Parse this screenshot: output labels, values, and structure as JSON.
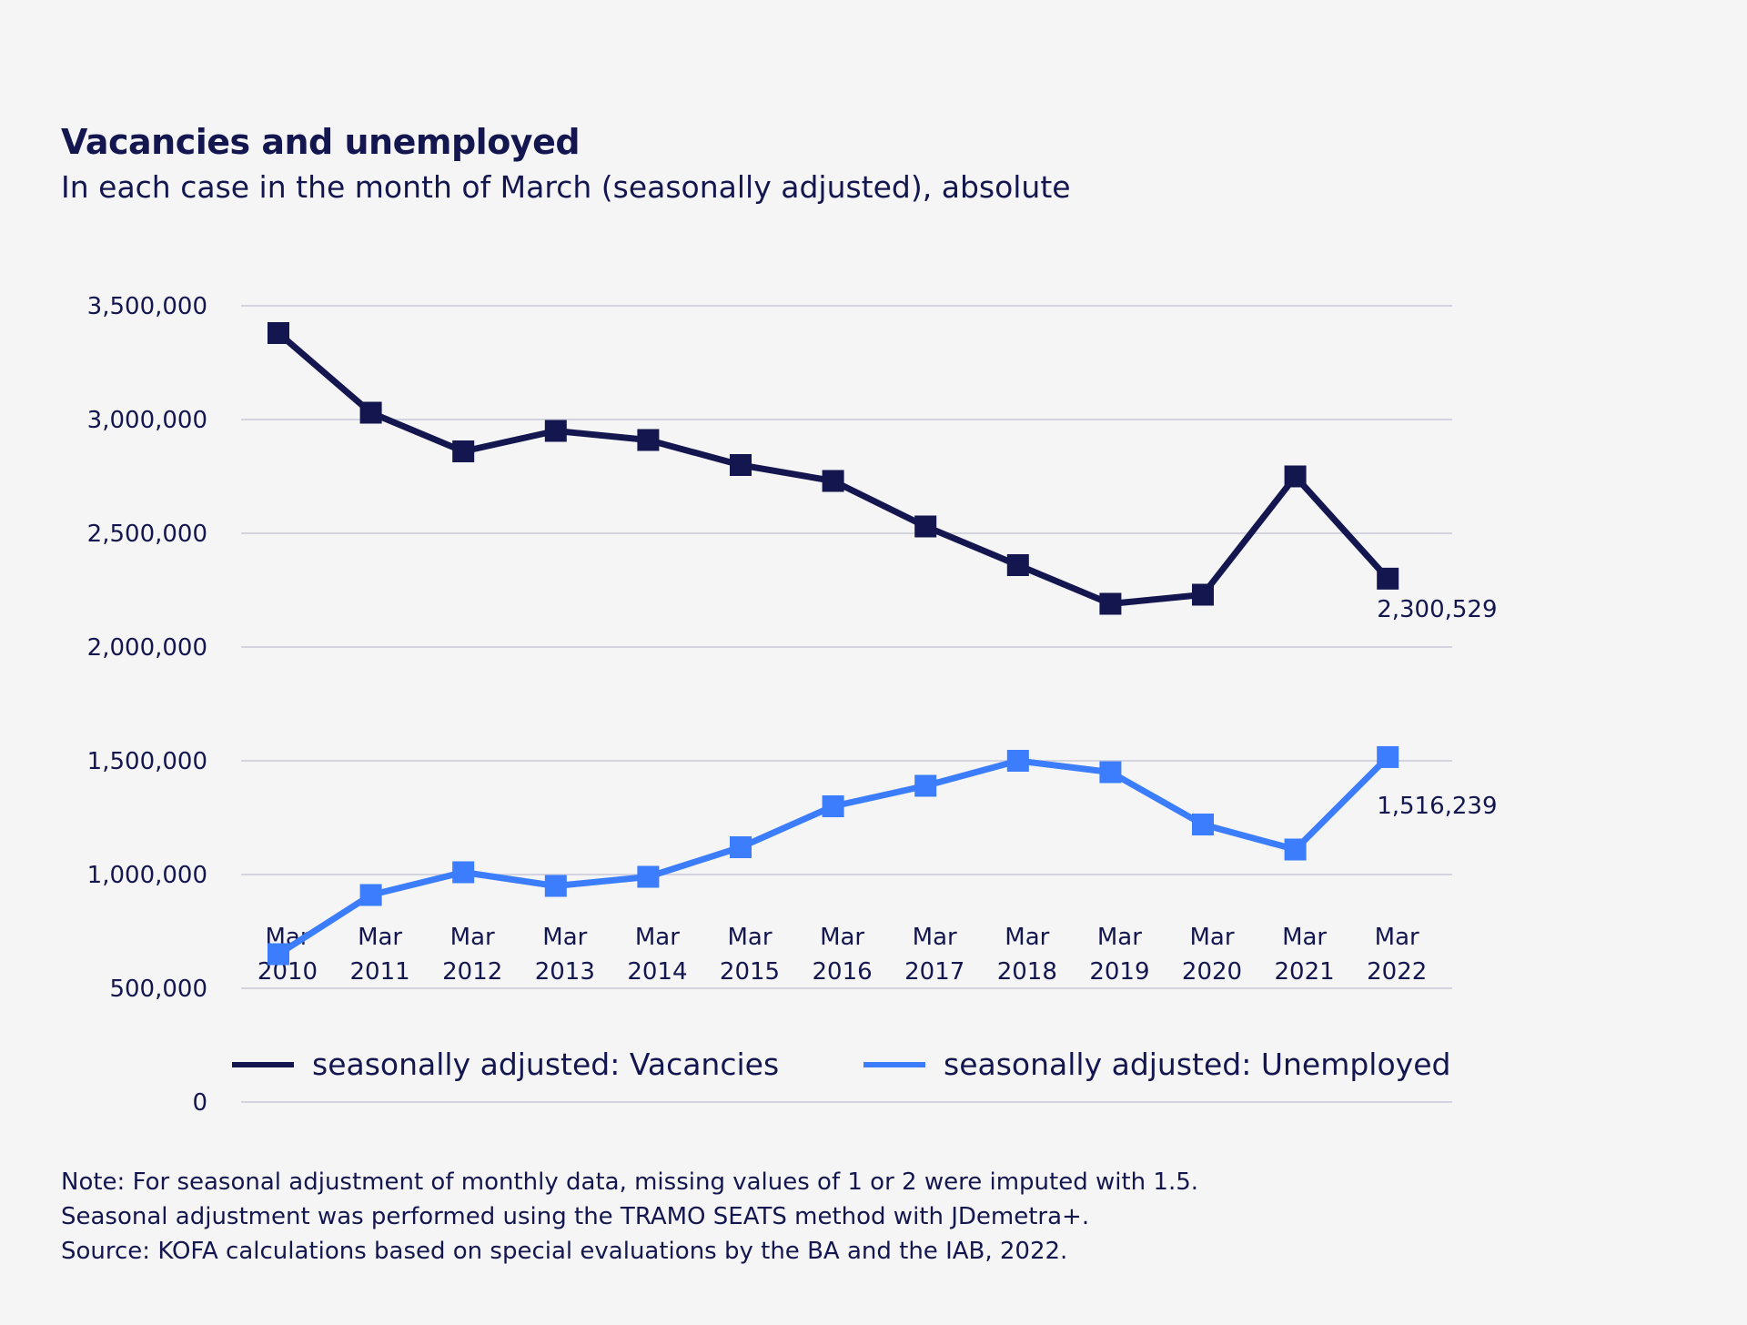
{
  "colors": {
    "background": "#f5f5f5",
    "vacancies": "#14174f",
    "unemployed": "#3b7dfc",
    "grid": "#d4d4e0",
    "text": "#14174f"
  },
  "chart_data": {
    "type": "line",
    "title": "Vacancies and unemployed",
    "subtitle": "In each case in the month of March (seasonally adjusted), absolute",
    "categories": [
      {
        "line1": "Mar",
        "line2": "2010"
      },
      {
        "line1": "Mar",
        "line2": "2011"
      },
      {
        "line1": "Mar",
        "line2": "2012"
      },
      {
        "line1": "Mar",
        "line2": "2013"
      },
      {
        "line1": "Mar",
        "line2": "2014"
      },
      {
        "line1": "Mar",
        "line2": "2015"
      },
      {
        "line1": "Mar",
        "line2": "2016"
      },
      {
        "line1": "Mar",
        "line2": "2017"
      },
      {
        "line1": "Mar",
        "line2": "2018"
      },
      {
        "line1": "Mar",
        "line2": "2019"
      },
      {
        "line1": "Mar",
        "line2": "2020"
      },
      {
        "line1": "Mar",
        "line2": "2021"
      },
      {
        "line1": "Mar",
        "line2": "2022"
      }
    ],
    "yticks": [
      "0",
      "500,000",
      "1,000,000",
      "1,500,000",
      "2,000,000",
      "2,500,000",
      "3,000,000",
      "3,500,000"
    ],
    "ylim": [
      0,
      3500000
    ],
    "grid": true,
    "legend_position": "bottom",
    "marker": "square",
    "series": [
      {
        "name": "seasonally adjusted: Vacancies",
        "color": "#14174f",
        "values": [
          3380000,
          3030000,
          2860000,
          2950000,
          2910000,
          2800000,
          2730000,
          2530000,
          2360000,
          2190000,
          2230000,
          2750000,
          2300529
        ],
        "end_label": "2,300,529"
      },
      {
        "name": "seasonally adjusted: Unemployed",
        "color": "#3b7dfc",
        "values": [
          650000,
          910000,
          1010000,
          950000,
          990000,
          1120000,
          1300000,
          1390000,
          1500000,
          1450000,
          1220000,
          1110000,
          1516239
        ],
        "end_label": "1,516,239"
      }
    ]
  },
  "notes": [
    "Note: For seasonal adjustment of monthly data, missing values of 1 or 2 were imputed with 1.5.",
    "Seasonal adjustment was performed using the TRAMO SEATS method with JDemetra+.",
    "Source: KOFA calculations based on special evaluations by the BA and the IAB, 2022."
  ]
}
